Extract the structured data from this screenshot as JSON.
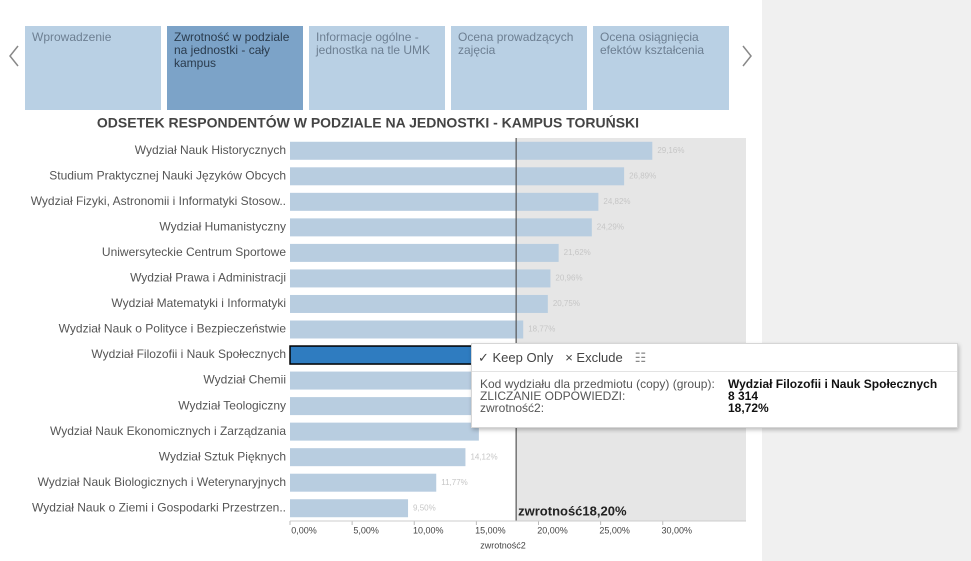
{
  "tabs": [
    "Wprowadzenie",
    "Zwrotność w podziale na jednostki - cały kampus",
    "Informacje ogólne - jednostka na tle UMK",
    "Ocena prowadzących zajęcia",
    "Ocena osiągnięcia efektów kształcenia"
  ],
  "active_tab": 1,
  "chart_data": {
    "type": "bar",
    "orientation": "horizontal",
    "title": "ODSETEK RESPONDENTÓW W PODZIALE NA JEDNOSTKI - KAMPUS TORUŃSKI",
    "x_label": "zwrotność2",
    "categories": [
      "Wydział Nauk Historycznych",
      "Studium Praktycznej Nauki Języków Obcych",
      "Wydział Fizyki, Astronomii i Informatyki Stosow..",
      "Wydział Humanistyczny",
      "Uniwersyteckie Centrum Sportowe",
      "Wydział Prawa i Administracji",
      "Wydział Matematyki i Informatyki",
      "Wydział Nauk o Polityce i Bezpieczeństwie",
      "Wydział Filozofii i Nauk Społecznych",
      "Wydział Chemii",
      "Wydział Teologiczny",
      "Wydział Nauk Ekonomicznych i Zarządzania",
      "Wydział Sztuk Pięknych",
      "Wydział Nauk Biologicznych i Weterynaryjnych",
      "Wydział Nauk o Ziemi i Gospodarki Przestrzen.."
    ],
    "values": [
      29.16,
      26.89,
      24.82,
      24.29,
      21.62,
      20.96,
      20.75,
      18.77,
      18.72,
      17.9,
      16.9,
      15.2,
      14.12,
      11.77,
      9.5
    ],
    "value_labels": [
      "29,16%",
      "26,89%",
      "24,82%",
      "24,29%",
      "21,62%",
      "20,96%",
      "20,75%",
      "18,77%",
      null,
      null,
      null,
      null,
      "14,12%",
      "11,77%",
      "9,50%"
    ],
    "color": "#b8cde0",
    "highlight_index": 8,
    "highlight_color": "#2f7cc0",
    "xlim": [
      0,
      36.7
    ],
    "xticks": [
      {
        "value": 0,
        "label": "0,00%"
      },
      {
        "value": 5,
        "label": "5,00%"
      },
      {
        "value": 10,
        "label": "10,00%"
      },
      {
        "value": 15,
        "label": "15,00%"
      },
      {
        "value": 20,
        "label": "20,00%"
      },
      {
        "value": 25,
        "label": "25,00%"
      },
      {
        "value": 30,
        "label": "30,00%"
      }
    ],
    "reference_line": {
      "value": 18.2,
      "label": "zwrotność18,20%"
    }
  },
  "tooltip": {
    "actions": [
      "✓ Keep Only",
      "× Exclude"
    ],
    "rows": [
      {
        "key": "Kod wydziału dla przedmiotu (copy) (group):",
        "value": "Wydział Filozofii i Nauk Społecznych"
      },
      {
        "key": "ZLICZANIE ODPOWIEDZI:",
        "value": "8 314"
      },
      {
        "key": "zwrotność2:",
        "value": "18,72%"
      }
    ]
  }
}
